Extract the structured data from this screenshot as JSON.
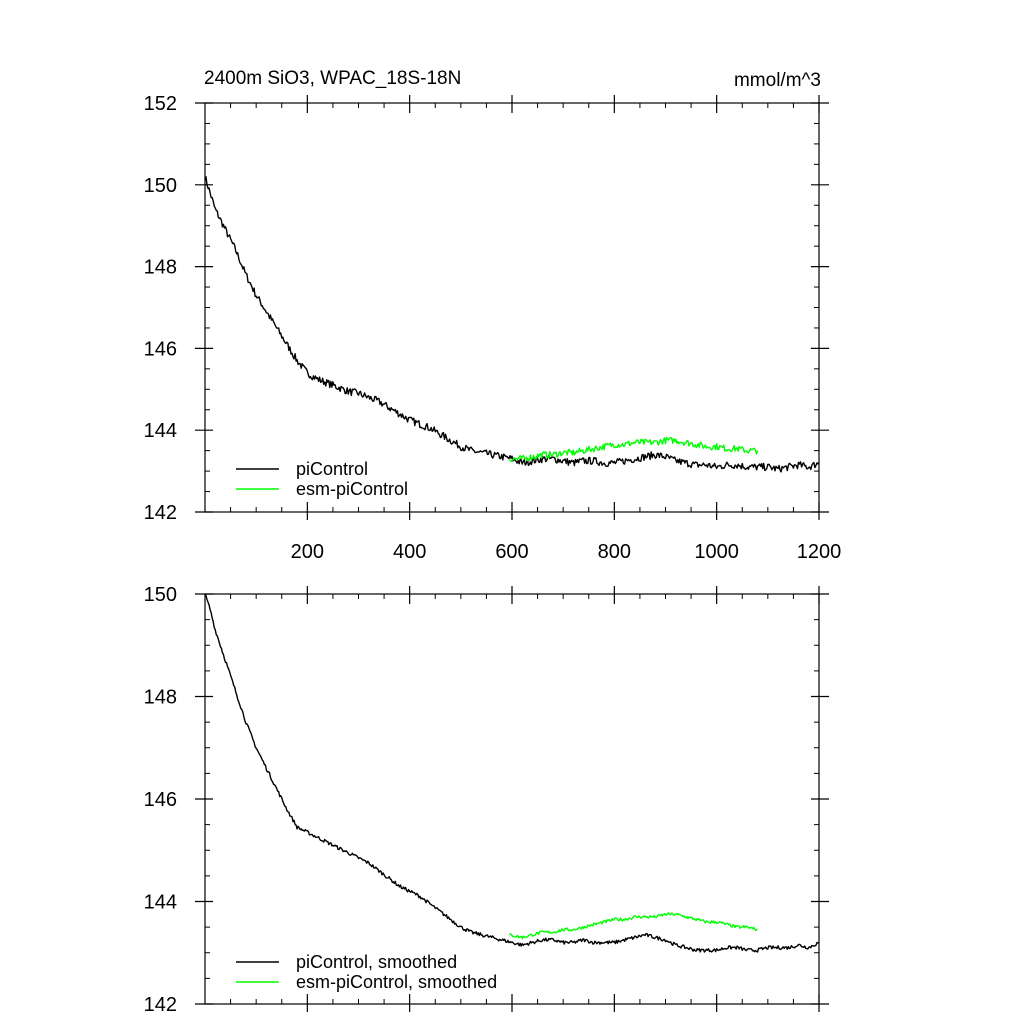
{
  "chart_data": [
    {
      "type": "line",
      "title": "2400m SiO3, WPAC_18S-18N",
      "units": "mmol/m^3",
      "xlabel": "",
      "ylabel": "",
      "xlim": [
        0,
        1200
      ],
      "ylim": [
        142,
        152
      ],
      "xticks": [
        200,
        400,
        600,
        800,
        1000,
        1200
      ],
      "yticks": [
        142,
        144,
        146,
        148,
        150,
        152
      ],
      "legend_position": "bottom-left",
      "series": [
        {
          "name": "piControl",
          "color": "#000000",
          "noise": 0.09,
          "points": [
            [
              0,
              150.2
            ],
            [
              10,
              149.8
            ],
            [
              20,
              149.4
            ],
            [
              40,
              148.9
            ],
            [
              60,
              148.4
            ],
            [
              80,
              147.8
            ],
            [
              100,
              147.3
            ],
            [
              120,
              146.9
            ],
            [
              140,
              146.5
            ],
            [
              160,
              146.1
            ],
            [
              180,
              145.7
            ],
            [
              200,
              145.4
            ],
            [
              220,
              145.25
            ],
            [
              240,
              145.15
            ],
            [
              260,
              145.05
            ],
            [
              280,
              144.95
            ],
            [
              300,
              144.9
            ],
            [
              320,
              144.8
            ],
            [
              340,
              144.7
            ],
            [
              360,
              144.55
            ],
            [
              380,
              144.4
            ],
            [
              400,
              144.25
            ],
            [
              420,
              144.15
            ],
            [
              440,
              144.05
            ],
            [
              460,
              143.9
            ],
            [
              480,
              143.75
            ],
            [
              500,
              143.6
            ],
            [
              520,
              143.5
            ],
            [
              540,
              143.45
            ],
            [
              560,
              143.4
            ],
            [
              580,
              143.35
            ],
            [
              600,
              143.3
            ],
            [
              620,
              143.2
            ],
            [
              640,
              143.25
            ],
            [
              660,
              143.3
            ],
            [
              680,
              143.3
            ],
            [
              700,
              143.25
            ],
            [
              720,
              143.2
            ],
            [
              740,
              143.25
            ],
            [
              760,
              143.25
            ],
            [
              780,
              143.2
            ],
            [
              800,
              143.2
            ],
            [
              820,
              143.25
            ],
            [
              840,
              143.3
            ],
            [
              860,
              143.35
            ],
            [
              880,
              143.4
            ],
            [
              900,
              143.35
            ],
            [
              920,
              143.25
            ],
            [
              940,
              143.2
            ],
            [
              960,
              143.15
            ],
            [
              980,
              143.15
            ],
            [
              1000,
              143.1
            ],
            [
              1020,
              143.15
            ],
            [
              1040,
              143.15
            ],
            [
              1060,
              143.1
            ],
            [
              1080,
              143.1
            ],
            [
              1100,
              143.1
            ],
            [
              1120,
              143.05
            ],
            [
              1140,
              143.1
            ],
            [
              1160,
              143.15
            ],
            [
              1180,
              143.1
            ],
            [
              1200,
              143.2
            ]
          ]
        },
        {
          "name": "esm-piControl",
          "color": "#00ff00",
          "noise": 0.08,
          "points": [
            [
              595,
              143.3
            ],
            [
              620,
              143.3
            ],
            [
              640,
              143.35
            ],
            [
              660,
              143.4
            ],
            [
              680,
              143.4
            ],
            [
              700,
              143.45
            ],
            [
              720,
              143.45
            ],
            [
              740,
              143.5
            ],
            [
              760,
              143.55
            ],
            [
              780,
              143.6
            ],
            [
              800,
              143.65
            ],
            [
              820,
              143.65
            ],
            [
              840,
              143.7
            ],
            [
              860,
              143.7
            ],
            [
              880,
              143.7
            ],
            [
              900,
              143.75
            ],
            [
              920,
              143.75
            ],
            [
              940,
              143.7
            ],
            [
              960,
              143.65
            ],
            [
              980,
              143.6
            ],
            [
              1000,
              143.6
            ],
            [
              1020,
              143.55
            ],
            [
              1040,
              143.55
            ],
            [
              1060,
              143.5
            ],
            [
              1080,
              143.5
            ]
          ]
        }
      ]
    },
    {
      "type": "line",
      "title": "",
      "xlabel": "",
      "ylabel": "",
      "xlim": [
        0,
        1200
      ],
      "ylim": [
        142,
        150
      ],
      "xticks": [
        200,
        400,
        600,
        800,
        1000,
        1200
      ],
      "yticks": [
        142,
        144,
        146,
        148,
        150
      ],
      "legend_position": "bottom-left",
      "series": [
        {
          "name": "piControl, smoothed",
          "color": "#000000",
          "noise": 0.035,
          "points": [
            [
              0,
              150.0
            ],
            [
              10,
              149.7
            ],
            [
              20,
              149.3
            ],
            [
              40,
              148.7
            ],
            [
              60,
              148.1
            ],
            [
              80,
              147.5
            ],
            [
              100,
              147.0
            ],
            [
              120,
              146.6
            ],
            [
              140,
              146.2
            ],
            [
              160,
              145.8
            ],
            [
              180,
              145.45
            ],
            [
              200,
              145.35
            ],
            [
              220,
              145.25
            ],
            [
              240,
              145.15
            ],
            [
              260,
              145.05
            ],
            [
              280,
              144.95
            ],
            [
              300,
              144.85
            ],
            [
              320,
              144.75
            ],
            [
              340,
              144.6
            ],
            [
              360,
              144.45
            ],
            [
              380,
              144.3
            ],
            [
              400,
              144.2
            ],
            [
              420,
              144.1
            ],
            [
              440,
              143.95
            ],
            [
              460,
              143.8
            ],
            [
              480,
              143.65
            ],
            [
              500,
              143.5
            ],
            [
              520,
              143.4
            ],
            [
              540,
              143.35
            ],
            [
              560,
              143.3
            ],
            [
              580,
              143.25
            ],
            [
              600,
              143.2
            ],
            [
              620,
              143.15
            ],
            [
              640,
              143.2
            ],
            [
              660,
              143.25
            ],
            [
              680,
              143.25
            ],
            [
              700,
              143.2
            ],
            [
              720,
              143.2
            ],
            [
              740,
              143.25
            ],
            [
              760,
              143.2
            ],
            [
              780,
              143.2
            ],
            [
              800,
              143.2
            ],
            [
              820,
              143.25
            ],
            [
              840,
              143.3
            ],
            [
              860,
              143.35
            ],
            [
              880,
              143.3
            ],
            [
              900,
              143.25
            ],
            [
              920,
              143.15
            ],
            [
              940,
              143.1
            ],
            [
              960,
              143.05
            ],
            [
              980,
              143.05
            ],
            [
              1000,
              143.05
            ],
            [
              1020,
              143.1
            ],
            [
              1040,
              143.1
            ],
            [
              1060,
              143.05
            ],
            [
              1080,
              143.05
            ],
            [
              1100,
              143.1
            ],
            [
              1120,
              143.1
            ],
            [
              1140,
              143.1
            ],
            [
              1160,
              143.15
            ],
            [
              1180,
              143.1
            ],
            [
              1200,
              143.2
            ]
          ]
        },
        {
          "name": "esm-piControl, smoothed",
          "color": "#00ff00",
          "noise": 0.03,
          "points": [
            [
              595,
              143.35
            ],
            [
              620,
              143.3
            ],
            [
              640,
              143.35
            ],
            [
              660,
              143.4
            ],
            [
              680,
              143.4
            ],
            [
              700,
              143.45
            ],
            [
              720,
              143.45
            ],
            [
              740,
              143.5
            ],
            [
              760,
              143.55
            ],
            [
              780,
              143.6
            ],
            [
              800,
              143.65
            ],
            [
              820,
              143.65
            ],
            [
              840,
              143.7
            ],
            [
              860,
              143.7
            ],
            [
              880,
              143.7
            ],
            [
              900,
              143.75
            ],
            [
              920,
              143.75
            ],
            [
              940,
              143.7
            ],
            [
              960,
              143.65
            ],
            [
              980,
              143.6
            ],
            [
              1000,
              143.6
            ],
            [
              1020,
              143.55
            ],
            [
              1040,
              143.5
            ],
            [
              1060,
              143.5
            ],
            [
              1080,
              143.45
            ]
          ]
        }
      ]
    }
  ]
}
